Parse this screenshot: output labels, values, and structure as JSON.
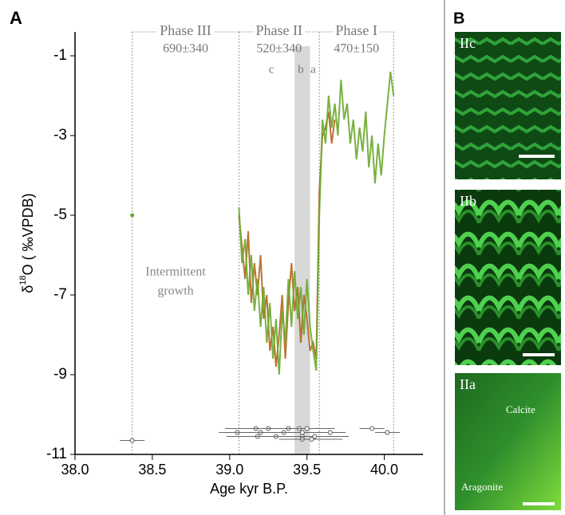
{
  "chart_data": {
    "type": "line",
    "panel_label": "A",
    "x_label": "Age kyr B.P.",
    "y_label": {
      "symbol": "δ",
      "superscript": "18",
      "rest": "O ( ‰VPDB)"
    },
    "xlim": [
      38.0,
      40.25
    ],
    "ylim": [
      -11,
      -0.4
    ],
    "xticks": [
      {
        "value": 38,
        "label": "38.0"
      },
      {
        "value": 38.5,
        "label": "38.5"
      },
      {
        "value": 39,
        "label": "39.0"
      },
      {
        "value": 39.5,
        "label": "39.5"
      },
      {
        "value": 40,
        "label": "40.0"
      }
    ],
    "yticks": [
      -1,
      -3,
      -5,
      -7,
      -9,
      -11
    ],
    "x": [
      39.06,
      39.08,
      39.1,
      39.12,
      39.14,
      39.16,
      39.18,
      39.2,
      39.22,
      39.24,
      39.26,
      39.28,
      39.3,
      39.32,
      39.34,
      39.36,
      39.38,
      39.4,
      39.42,
      39.44,
      39.46,
      39.48,
      39.5,
      39.52,
      39.54,
      39.56,
      39.58,
      39.6,
      39.62,
      39.64,
      39.66,
      39.68,
      39.7,
      39.72,
      39.74,
      39.76,
      39.78,
      39.8,
      39.82,
      39.84,
      39.86,
      39.88,
      39.9,
      39.92,
      39.94,
      39.96,
      39.98,
      40.0,
      40.02,
      40.04,
      40.06
    ],
    "series": [
      {
        "color": "#b5651d",
        "values": [
          -5.0,
          -5.8,
          -6.6,
          -5.4,
          -7.2,
          -6.2,
          -7.0,
          -6.0,
          -7.6,
          -7.0,
          -8.4,
          -7.8,
          -8.8,
          -8.0,
          -7.0,
          -8.6,
          -7.2,
          -6.2,
          -7.4,
          -6.8,
          -8.2,
          -7.0,
          -7.6,
          -8.4,
          -8.2,
          -8.6,
          -4.4,
          -3.0,
          -2.8,
          -2.4,
          -3.2,
          -2.6,
          null,
          null,
          null,
          null,
          null,
          null,
          null,
          null,
          null,
          null,
          null,
          null,
          null,
          null,
          null,
          null,
          null,
          null,
          null
        ]
      },
      {
        "color": "#6aa82e",
        "values": [
          -4.8,
          -6.2,
          -5.6,
          -7.0,
          -6.0,
          -7.4,
          -6.6,
          -7.8,
          -6.8,
          -8.2,
          -7.2,
          -8.6,
          -7.6,
          -9.0,
          -7.4,
          -8.2,
          -6.6,
          -7.8,
          -6.4,
          -7.6,
          -6.8,
          -8.0,
          -6.6,
          -7.8,
          -8.4,
          -8.9,
          -5.0,
          -2.6,
          -3.2,
          -2.0,
          -2.8,
          -2.2,
          -3.0,
          -1.6,
          -2.6,
          -2.2,
          -3.2,
          -2.6,
          -3.6,
          -2.8,
          -3.4,
          -2.4,
          -3.8,
          -3.0,
          -4.2,
          -3.2,
          -4.0,
          -3.0,
          -2.2,
          -1.4,
          -2.0
        ]
      }
    ],
    "isolated_point": {
      "x": 38.37,
      "y": -5.0
    },
    "phase_boundaries": [
      38.37,
      39.06,
      39.58,
      40.06
    ],
    "phases": [
      {
        "name": "Phase III",
        "age": "690±340"
      },
      {
        "name": "Phase II",
        "age": "520±340"
      },
      {
        "name": "Phase I",
        "age": "470±150"
      }
    ],
    "shaded_band": [
      39.42,
      39.52
    ],
    "band_letters": [
      "c",
      "b",
      "a"
    ],
    "annotation": [
      "Intermittent",
      "growth"
    ],
    "dates": [
      {
        "x": 38.37,
        "y": -10.65,
        "xerr": 0.08
      },
      {
        "x": 39.17,
        "y": -10.35,
        "xerr": 0.2
      },
      {
        "x": 39.25,
        "y": -10.35,
        "xerr": 0.15
      },
      {
        "x": 39.38,
        "y": -10.35,
        "xerr": 0.3
      },
      {
        "x": 39.45,
        "y": -10.35,
        "xerr": 0.1
      },
      {
        "x": 39.5,
        "y": -10.35,
        "xerr": 0.15
      },
      {
        "x": 39.92,
        "y": -10.35,
        "xerr": 0.08
      },
      {
        "x": 39.05,
        "y": -10.45,
        "xerr": 0.12
      },
      {
        "x": 39.2,
        "y": -10.45,
        "xerr": 0.25
      },
      {
        "x": 39.35,
        "y": -10.45,
        "xerr": 0.2
      },
      {
        "x": 39.47,
        "y": -10.45,
        "xerr": 0.2
      },
      {
        "x": 39.65,
        "y": -10.45,
        "xerr": 0.1
      },
      {
        "x": 40.02,
        "y": -10.45,
        "xerr": 0.08
      },
      {
        "x": 39.18,
        "y": -10.55,
        "xerr": 0.2
      },
      {
        "x": 39.3,
        "y": -10.55,
        "xerr": 0.25
      },
      {
        "x": 39.47,
        "y": -10.55,
        "xerr": 0.3
      },
      {
        "x": 39.55,
        "y": -10.55,
        "xerr": 0.1
      },
      {
        "x": 39.47,
        "y": -10.62,
        "xerr": 0.15
      },
      {
        "x": 39.53,
        "y": -10.62,
        "xerr": 0.2
      }
    ]
  },
  "panel_b": {
    "label": "B",
    "images": [
      {
        "label": "IIc"
      },
      {
        "label": "IIb"
      },
      {
        "label": "IIa",
        "upper": "Calcite",
        "lower": "Aragonite"
      }
    ]
  }
}
